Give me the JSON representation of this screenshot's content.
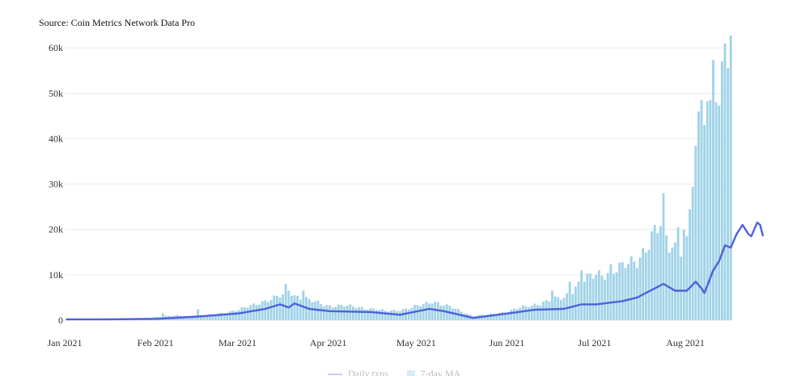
{
  "chart_data": {
    "type": "bar",
    "title": "",
    "subtitle": "Source: Coin Metrics Network Data Pro",
    "xlabel": "",
    "ylabel": "",
    "ylim": [
      0,
      62000
    ],
    "yticks": [
      0,
      10000,
      20000,
      30000,
      40000,
      50000,
      60000
    ],
    "ytick_labels": [
      "0",
      "10k",
      "20k",
      "30k",
      "40k",
      "50k",
      "60k"
    ],
    "xticks": [
      "2021-01-01",
      "2021-02-01",
      "2021-03-01",
      "2021-04-01",
      "2021-05-01",
      "2021-06-01",
      "2021-07-01",
      "2021-08-01"
    ],
    "xtick_labels": [
      "Jan 2021",
      "Feb 2021",
      "Mar 2021",
      "Apr 2021",
      "May 2021",
      "Jun 2021",
      "Jul 2021",
      "Aug 2021"
    ],
    "grid": true,
    "legend": "bottom",
    "colors": {
      "bars": "#9fd2e8",
      "line": "#5060d8",
      "grid": "#ececec"
    },
    "x_start": "2021-01-01",
    "x_end": "2021-08-16",
    "series": [
      {
        "kind": "bar",
        "anchors": [
          [
            "2021-01-01",
            250
          ],
          [
            "2021-01-10",
            300
          ],
          [
            "2021-01-20",
            350
          ],
          [
            "2021-01-28",
            500
          ],
          [
            "2021-02-01",
            800
          ],
          [
            "2021-02-08",
            1000
          ],
          [
            "2021-02-15",
            800
          ],
          [
            "2021-02-22",
            1500
          ],
          [
            "2021-03-01",
            2200
          ],
          [
            "2021-03-08",
            4000
          ],
          [
            "2021-03-12",
            4500
          ],
          [
            "2021-03-16",
            5500
          ],
          [
            "2021-03-18",
            7000
          ],
          [
            "2021-03-20",
            5500
          ],
          [
            "2021-03-25",
            4300
          ],
          [
            "2021-04-01",
            3200
          ],
          [
            "2021-04-10",
            3000
          ],
          [
            "2021-04-20",
            2000
          ],
          [
            "2021-04-28",
            2500
          ],
          [
            "2021-05-03",
            3500
          ],
          [
            "2021-05-06",
            4300
          ],
          [
            "2021-05-10",
            3300
          ],
          [
            "2021-05-14",
            2500
          ],
          [
            "2021-05-20",
            900
          ],
          [
            "2021-05-25",
            1200
          ],
          [
            "2021-06-01",
            2000
          ],
          [
            "2021-06-10",
            3500
          ],
          [
            "2021-06-20",
            5000
          ],
          [
            "2021-06-25",
            8000
          ],
          [
            "2021-07-01",
            10000
          ],
          [
            "2021-07-10",
            11500
          ],
          [
            "2021-07-15",
            13500
          ],
          [
            "2021-07-20",
            18000
          ],
          [
            "2021-07-23",
            20500
          ],
          [
            "2021-07-26",
            17000
          ],
          [
            "2021-07-30",
            16000
          ],
          [
            "2021-08-02",
            25000
          ],
          [
            "2021-08-05",
            38000
          ],
          [
            "2021-08-07",
            45000
          ],
          [
            "2021-08-10",
            48000
          ],
          [
            "2021-08-13",
            55000
          ],
          [
            "2021-08-16",
            57000
          ]
        ],
        "spikes": [
          [
            "2021-02-03",
            1500
          ],
          [
            "2021-02-15",
            2400
          ],
          [
            "2021-03-17",
            8000
          ],
          [
            "2021-03-23",
            6500
          ],
          [
            "2021-06-16",
            6500
          ],
          [
            "2021-06-22",
            8500
          ],
          [
            "2021-06-26",
            11000
          ],
          [
            "2021-07-06",
            12300
          ],
          [
            "2021-07-24",
            28000
          ],
          [
            "2021-07-29",
            20500
          ],
          [
            "2021-08-01",
            18500
          ],
          [
            "2021-08-05",
            46000
          ],
          [
            "2021-08-06",
            48500
          ],
          [
            "2021-08-07",
            43000
          ],
          [
            "2021-08-09",
            48500
          ],
          [
            "2021-08-10",
            57300
          ],
          [
            "2021-08-11",
            48000
          ],
          [
            "2021-08-12",
            47300
          ],
          [
            "2021-08-13",
            57000
          ],
          [
            "2021-08-14",
            61000
          ],
          [
            "2021-08-15",
            55500
          ]
        ]
      },
      {
        "kind": "line",
        "anchors": [
          [
            "2021-01-01",
            200
          ],
          [
            "2021-01-15",
            200
          ],
          [
            "2021-02-01",
            300
          ],
          [
            "2021-02-15",
            800
          ],
          [
            "2021-03-01",
            1500
          ],
          [
            "2021-03-10",
            2500
          ],
          [
            "2021-03-15",
            3500
          ],
          [
            "2021-03-18",
            2800
          ],
          [
            "2021-03-20",
            3700
          ],
          [
            "2021-03-25",
            2500
          ],
          [
            "2021-04-01",
            2000
          ],
          [
            "2021-04-15",
            1800
          ],
          [
            "2021-04-25",
            1200
          ],
          [
            "2021-05-05",
            2500
          ],
          [
            "2021-05-10",
            2000
          ],
          [
            "2021-05-20",
            500
          ],
          [
            "2021-06-01",
            1500
          ],
          [
            "2021-06-10",
            2300
          ],
          [
            "2021-06-20",
            2500
          ],
          [
            "2021-06-26",
            3500
          ],
          [
            "2021-07-01",
            3500
          ],
          [
            "2021-07-10",
            4200
          ],
          [
            "2021-07-15",
            5000
          ],
          [
            "2021-07-21",
            7000
          ],
          [
            "2021-07-24",
            8000
          ],
          [
            "2021-07-28",
            6500
          ],
          [
            "2021-08-01",
            6500
          ],
          [
            "2021-08-04",
            8500
          ],
          [
            "2021-08-06",
            7000
          ],
          [
            "2021-08-07",
            6000
          ],
          [
            "2021-08-10",
            11000
          ],
          [
            "2021-08-12",
            13000
          ],
          [
            "2021-08-14",
            16500
          ],
          [
            "2021-08-16",
            16000
          ],
          [
            "2021-08-18",
            19000
          ],
          [
            "2021-08-20",
            21000
          ],
          [
            "2021-08-22",
            19000
          ],
          [
            "2021-08-23",
            18500
          ],
          [
            "2021-08-25",
            21500
          ],
          [
            "2021-08-26",
            21000
          ],
          [
            "2021-08-27",
            18500
          ]
        ]
      }
    ]
  },
  "legend_labels": [
    "Daily txns",
    "7-day MA"
  ]
}
